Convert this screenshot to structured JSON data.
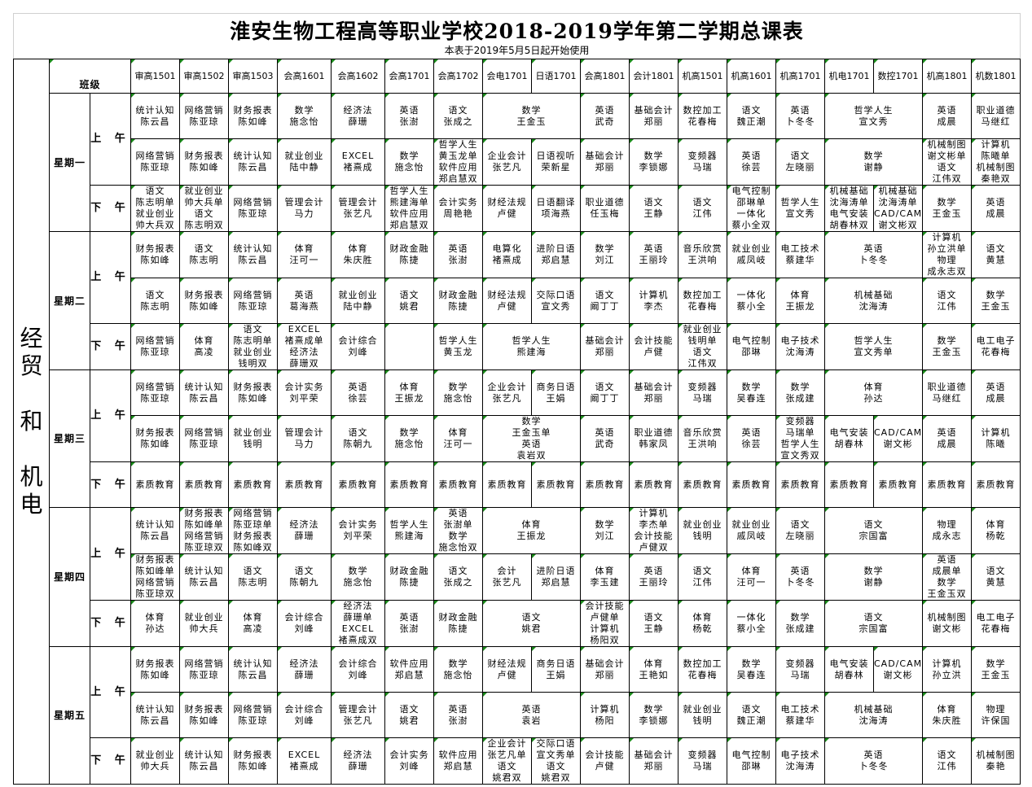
{
  "title": "淮安生物工程高等职业学校2018-2019学年第二学期总课表",
  "subtitle": "本表于2019年5月5日起开始使用",
  "department": "经贸\n\n和\n\n机电",
  "class_header": "班级",
  "accent_color": "#1a8a1a",
  "classes": [
    "审高1501",
    "审高1502",
    "审高1503",
    "会高1601",
    "会高1602",
    "会高1701",
    "会高1702",
    "会电1701",
    "日语1701",
    "会高1801",
    "会计1801",
    "机高1501",
    "机高1601",
    "机高1701",
    "机电1701",
    "数控1701",
    "机高1801",
    "机数1801"
  ],
  "days": [
    {
      "label": "星期一",
      "rows": [
        {
          "half": "上 午",
          "cells": [
            "统计认知\n陈云昌",
            "网络营销\n陈亚琼",
            "财务报表\n陈如峰",
            "数学\n施念怡",
            "经济法\n薛珊",
            "英语\n张澍",
            "语文\n张成之",
            {
              "t": "数学\n王金玉",
              "span": 2
            },
            "英语\n武奇",
            "基础会计\n郑丽",
            "数控加工\n花春梅",
            "语文\n魏正潮",
            "英语\n卜冬冬",
            {
              "t": "哲学人生\n宣文秀",
              "span": 2
            },
            "英语\n成晨",
            "职业道德\n马继红"
          ]
        },
        {
          "half": "",
          "cells": [
            "网络营销\n陈亚琼",
            "财务报表\n陈如峰",
            "统计认知\n陈云昌",
            "就业创业\n陆中静",
            "EXCEL\n褚熹成",
            "数学\n施念怡",
            "哲学人生\n黄玉龙单\n软件应用\n郑启慧双",
            "企业会计\n张艺凡",
            "日语视听\n荣新星",
            "基础会计\n郑丽",
            "数学\n李锁娜",
            "变频器\n马瑞",
            "英语\n徐芸",
            "语文\n左晓丽",
            {
              "t": "数学\n谢静",
              "span": 2
            },
            "机械制图\n谢文彬单\n语文\n江伟双",
            "计算机\n陈曦单\n机械制图\n秦艳双"
          ]
        },
        {
          "half": "下 午",
          "cells": [
            "语文\n陈志明单\n就业创业\n帅大兵双",
            "就业创业\n帅大兵单\n语文\n陈志明双",
            "网络营销\n陈亚琼",
            "管理会计\n马力",
            "管理会计\n张艺凡",
            "哲学人生\n熊建海单\n软件应用\n郑启慧双",
            "会计实务\n周艳艳",
            "财经法规\n卢健",
            "日语翻译\n项海燕",
            "职业道德\n任玉梅",
            "语文\n王静",
            "语文\n江伟",
            "电气控制\n邵琳单\n一体化\n蔡小全双",
            "哲学人生\n宣文秀",
            "机械基础\n沈海涛单\n电气安装\n胡春林双",
            "机械基础\n沈海涛单\nCAD/CAM\n谢文彬双",
            "数学\n王金玉",
            "英语\n成晨"
          ]
        }
      ]
    },
    {
      "label": "星期二",
      "rows": [
        {
          "half": "上 午",
          "cells": [
            "财务报表\n陈如峰",
            "语文\n陈志明",
            "统计认知\n陈云昌",
            "体育\n汪可一",
            "体育\n朱庆胜",
            "财政金融\n陈捷",
            "英语\n张澍",
            "电算化\n褚熹成",
            "进阶日语\n郑启慧",
            "数学\n刘江",
            "英语\n王丽玲",
            "音乐欣赏\n王洪响",
            "就业创业\n戚凤岐",
            "电工技术\n蔡建华",
            {
              "t": "英语\n卜冬冬",
              "span": 2
            },
            "计算机\n孙立洪单\n物理\n成永志双",
            "语文\n黄慧"
          ]
        },
        {
          "half": "",
          "cells": [
            "语文\n陈志明",
            "财务报表\n陈如峰",
            "网络营销\n陈亚琼",
            "英语\n葛海燕",
            "就业创业\n陆中静",
            "语文\n姚君",
            "财政金融\n陈捷",
            "财经法规\n卢健",
            "交际口语\n宣文秀",
            "语文\n阚丁丁",
            "计算机\n李杰",
            "数控加工\n花春梅",
            "一体化\n蔡小全",
            "体育\n王振龙",
            {
              "t": "机械基础\n沈海涛",
              "span": 2
            },
            "语文\n江伟",
            "数学\n王金玉"
          ]
        },
        {
          "half": "下 午",
          "cells": [
            "网络营销\n陈亚琼",
            "体育\n高凌",
            "语文\n陈志明单\n就业创业\n钱明双",
            "EXCEL\n褚熹成单\n经济法\n薛珊双",
            "会计综合\n刘峰",
            "",
            "哲学人生\n黄玉龙",
            {
              "t": "哲学人生\n熊建海",
              "span": 2
            },
            "基础会计\n郑丽",
            "会计技能\n卢健",
            "就业创业\n钱明单\n语文\n江伟双",
            "电气控制\n邵琳",
            "电子技术\n沈海涛",
            {
              "t": "哲学人生\n宣文秀单",
              "span": 2
            },
            "数学\n王金玉",
            "电工电子\n花春梅"
          ]
        }
      ]
    },
    {
      "label": "星期三",
      "rows": [
        {
          "half": "上 午",
          "cells": [
            "网络营销\n陈亚琼",
            "统计认知\n陈云昌",
            "财务报表\n陈如峰",
            "会计实务\n刘平荣",
            "英语\n徐芸",
            "体育\n王振龙",
            "数学\n施念怡",
            "企业会计\n张艺凡",
            "商务日语\n王娟",
            "语文\n阚丁丁",
            "基础会计\n郑丽",
            "变频器\n马瑞",
            "数学\n吴春连",
            "数学\n张成建",
            {
              "t": "体育\n孙达",
              "span": 2
            },
            "职业道德\n马继红",
            "英语\n成晨"
          ]
        },
        {
          "half": "",
          "cells": [
            "财务报表\n陈如峰",
            "网络营销\n陈亚琼",
            "就业创业\n钱明",
            "管理会计\n马力",
            "语文\n陈朝九",
            "数学\n施念怡",
            "体育\n汪可一",
            {
              "t": "数学\n王金玉单\n英语\n袁岩双",
              "span": 2
            },
            "英语\n武奇",
            "职业道德\n韩家凤",
            "音乐欣赏\n王洪响",
            "英语\n徐芸",
            "变频器\n马瑞单\n哲学人生\n宣文秀双",
            "电气安装\n胡春林",
            "CAD/CAM\n谢文彬",
            "英语\n成晨",
            "计算机\n陈曦"
          ]
        },
        {
          "half": "下 午",
          "cells": [
            "素质教育",
            "素质教育",
            "素质教育",
            "素质教育",
            "素质教育",
            "素质教育",
            "素质教育",
            "素质教育",
            "素质教育",
            "素质教育",
            "素质教育",
            "素质教育",
            "素质教育",
            "素质教育",
            "素质教育",
            "素质教育",
            "素质教育",
            "素质教育"
          ]
        }
      ]
    },
    {
      "label": "星期四",
      "rows": [
        {
          "half": "上 午",
          "cells": [
            "统计认知\n陈云昌",
            "财务报表\n陈如峰单\n网络营销\n陈亚琼双",
            "网络营销\n陈亚琼单\n财务报表\n陈如峰双",
            "经济法\n薛珊",
            "会计实务\n刘平荣",
            "哲学人生\n熊建海",
            "英语\n张澍单\n数学\n施念怡双",
            {
              "t": "体育\n王振龙",
              "span": 2
            },
            "数学\n刘江",
            "计算机\n李杰单\n会计技能\n卢健双",
            "就业创业\n钱明",
            "就业创业\n戚凤岐",
            "语文\n左晓丽",
            {
              "t": "语文\n宗国富",
              "span": 2
            },
            "物理\n成永志",
            "体育\n杨乾"
          ]
        },
        {
          "half": "",
          "cells": [
            "财务报表\n陈如峰单\n网络营销\n陈亚琼双",
            "统计认知\n陈云昌",
            "语文\n陈志明",
            "语文\n陈朝九",
            "数学\n施念怡",
            "财政金融\n陈捷",
            "语文\n张成之",
            "会计\n张艺凡",
            "进阶日语\n郑启慧",
            "体育\n李玉建",
            "英语\n王丽玲",
            "语文\n江伟",
            "体育\n汪可一",
            "英语\n卜冬冬",
            {
              "t": "数学\n谢静",
              "span": 2
            },
            "英语\n成晨单\n数学\n王金玉双",
            "语文\n黄慧"
          ]
        },
        {
          "half": "下 午",
          "cells": [
            "体育\n孙达",
            "就业创业\n帅大兵",
            "体育\n高凌",
            "会计综合\n刘峰",
            "经济法\n薛珊单\nEXCEL\n褚熹成双",
            "英语\n张澍",
            "财政金融\n陈捷",
            {
              "t": "语文\n姚君",
              "span": 2
            },
            "会计技能\n卢健单\n计算机\n杨阳双",
            "语文\n王静",
            "体育\n杨乾",
            "一体化\n蔡小全",
            "数学\n张成建",
            {
              "t": "语文\n宗国富",
              "span": 2
            },
            "机械制图\n谢文彬",
            "电工电子\n花春梅"
          ]
        }
      ]
    },
    {
      "label": "星期五",
      "rows": [
        {
          "half": "上 午",
          "cells": [
            "财务报表\n陈如峰",
            "网络营销\n陈亚琼",
            "统计认知\n陈云昌",
            "经济法\n薛珊",
            "会计综合\n刘峰",
            "软件应用\n郑启慧",
            "数学\n施念怡",
            "财经法规\n卢健",
            "商务日语\n王娟",
            "基础会计\n郑丽",
            "体育\n王艳如",
            "数控加工\n花春梅",
            "数学\n吴春连",
            "变频器\n马瑞",
            "电气安装\n胡春林",
            "CAD/CAM\n谢文彬",
            "计算机\n孙立洪",
            "数学\n王金玉"
          ]
        },
        {
          "half": "",
          "cells": [
            "统计认知\n陈云昌",
            "财务报表\n陈如峰",
            "网络营销\n陈亚琼",
            "会计综合\n刘峰",
            "管理会计\n张艺凡",
            "语文\n姚君",
            "英语\n张澍",
            {
              "t": "英语\n袁岩",
              "span": 2
            },
            "计算机\n杨阳",
            "数学\n李锁娜",
            "就业创业\n钱明",
            "语文\n魏正潮",
            "电工技术\n蔡建华",
            {
              "t": "机械基础\n沈海涛",
              "span": 2
            },
            "体育\n朱庆胜",
            "物理\n许保国"
          ]
        },
        {
          "half": "下 午",
          "cells": [
            "就业创业\n帅大兵",
            "统计认知\n陈云昌",
            "财务报表\n陈如峰",
            "EXCEL\n褚熹成",
            "经济法\n薛珊",
            "会计实务\n刘峰",
            "软件应用\n郑启慧",
            "企业会计\n张艺凡单\n语文\n姚君双",
            "交际口语\n宣文秀单\n语文\n姚君双",
            "会计技能\n卢健",
            "基础会计\n郑丽",
            "变频器\n马瑞",
            "电气控制\n邵琳",
            "电子技术\n沈海涛",
            {
              "t": "英语\n卜冬冬",
              "span": 2
            },
            "语文\n江伟",
            "机械制图\n秦艳"
          ]
        }
      ]
    }
  ]
}
